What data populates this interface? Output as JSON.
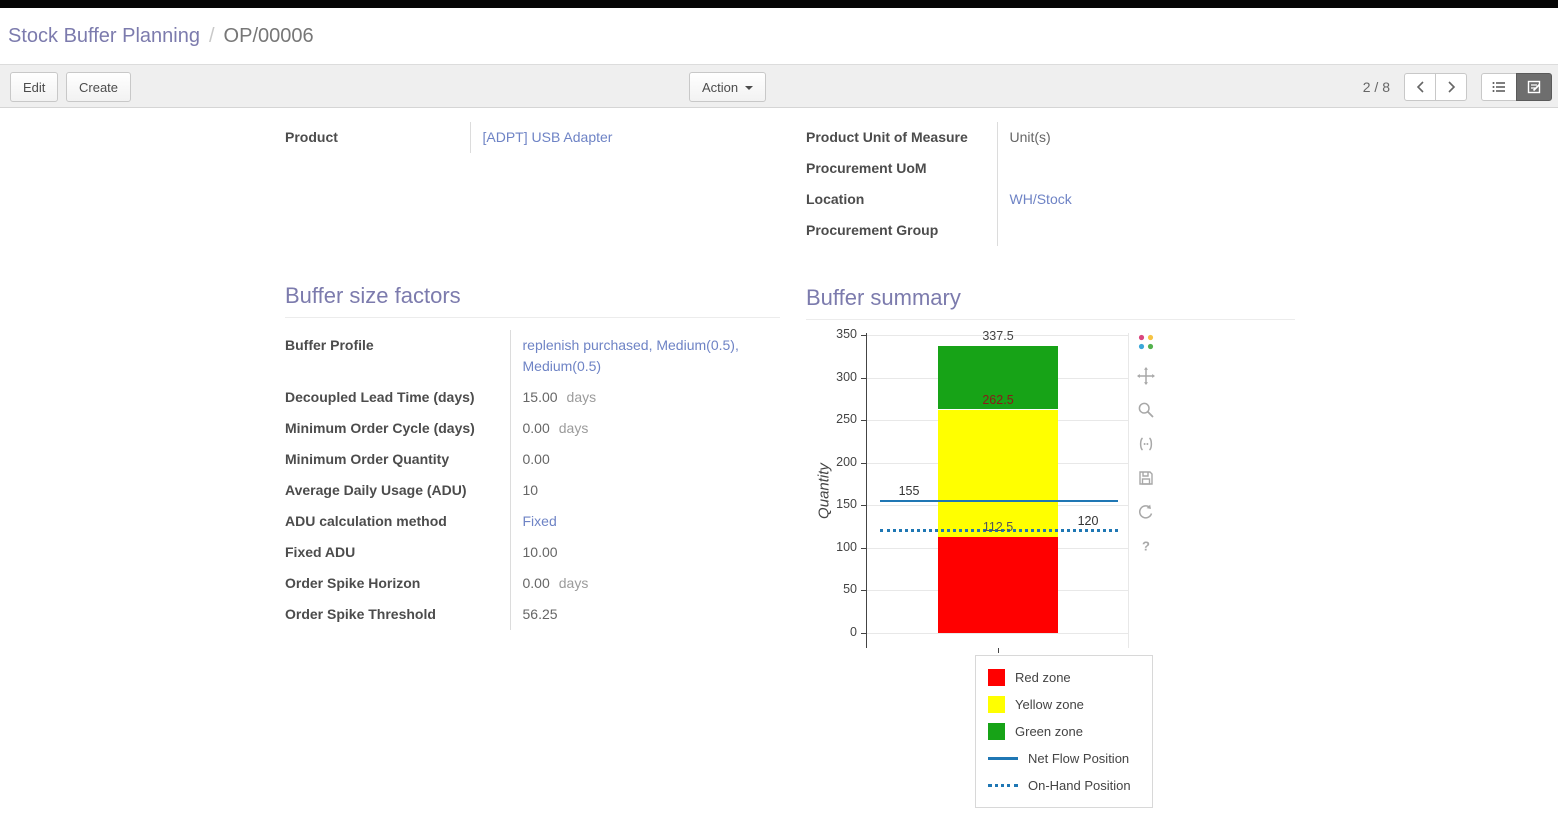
{
  "breadcrumb": {
    "parent": "Stock Buffer Planning",
    "separator": "/",
    "current": "OP/00006"
  },
  "toolbar": {
    "edit": "Edit",
    "create": "Create",
    "action": "Action",
    "pager": "2 / 8",
    "icons": [
      "previous",
      "next",
      "list-view",
      "form-view"
    ]
  },
  "colors": {
    "accent": "#7c7bad",
    "link": "#6e83c5"
  },
  "form": {
    "top_left_fields": [
      {
        "label": "Product",
        "value": "[ADPT] USB Adapter",
        "link": true
      }
    ],
    "top_right_fields": [
      {
        "label": "Product Unit of Measure",
        "value": "Unit(s)",
        "link": false
      },
      {
        "label": "Procurement UoM",
        "value": "",
        "link": false
      },
      {
        "label": "Location",
        "value": "WH/Stock",
        "link": true
      },
      {
        "label": "Procurement Group",
        "value": "",
        "link": false
      }
    ],
    "buffer_factors": {
      "title": "Buffer size factors",
      "rows": [
        {
          "label": "Buffer Profile",
          "value": "replenish purchased, Medium(0.5), Medium(0.5)",
          "link": true
        },
        {
          "label": "Decoupled Lead Time (days)",
          "value": "15.00",
          "suffix": "days"
        },
        {
          "label": "Minimum Order Cycle (days)",
          "value": "0.00",
          "suffix": "days"
        },
        {
          "label": "Minimum Order Quantity",
          "value": "0.00"
        },
        {
          "label": "Average Daily Usage (ADU)",
          "value": "10"
        },
        {
          "label": "ADU calculation method",
          "value": "Fixed",
          "link": true
        },
        {
          "label": "Fixed ADU",
          "value": "10.00"
        },
        {
          "label": "Order Spike Horizon",
          "value": "0.00",
          "suffix": "days"
        },
        {
          "label": "Order Spike Threshold",
          "value": "56.25"
        }
      ]
    },
    "buffer_summary": {
      "title": "Buffer summary"
    }
  },
  "chart_data": {
    "type": "bar",
    "title": "",
    "ylabel": "Quantity",
    "ylim": [
      0,
      350
    ],
    "yticks": [
      0,
      50,
      100,
      150,
      200,
      250,
      300,
      350
    ],
    "grid": true,
    "zones": [
      {
        "label": "Red zone",
        "from": 0,
        "to": 112.5,
        "color": "#ff0000"
      },
      {
        "label": "Yellow zone",
        "from": 112.5,
        "to": 262.5,
        "color": "#ffff00"
      },
      {
        "label": "Green zone",
        "from": 262.5,
        "to": 337.5,
        "color": "#17a317"
      }
    ],
    "lines": [
      {
        "label": "Net Flow Position",
        "value": 155,
        "style": "solid",
        "color": "#1f77b4"
      },
      {
        "label": "On-Hand Position",
        "value": 120,
        "style": "dotted",
        "color": "#1f77b4"
      }
    ],
    "annotations": [
      {
        "text": "337.5",
        "value": 337.5,
        "anchor": "bar-center",
        "color": "#444444"
      },
      {
        "text": "262.5",
        "value": 262.5,
        "anchor": "bar-center",
        "color": "#8b1a1a"
      },
      {
        "text": "155",
        "value": 155,
        "anchor": "left",
        "color": "#333333"
      },
      {
        "text": "112.5",
        "value": 112.5,
        "anchor": "bar-center",
        "color": "#555555"
      },
      {
        "text": "120",
        "value": 120,
        "anchor": "right",
        "color": "#333333"
      }
    ],
    "legend_position": "below-right",
    "modebar_icons": [
      "plotly-logo",
      "pan",
      "zoom",
      "autoscale",
      "save",
      "reset-axes",
      "help"
    ]
  }
}
